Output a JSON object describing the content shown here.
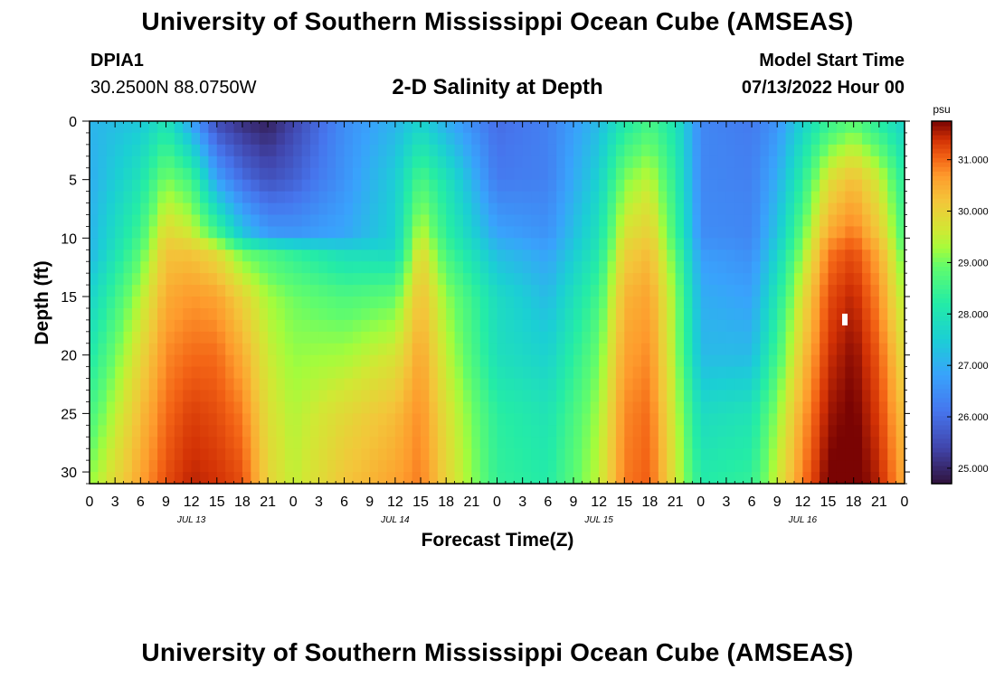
{
  "header": {
    "title": "University of Southern Mississippi Ocean Cube (AMSEAS)",
    "station_id": "DPIA1",
    "station_coords": "30.2500N  88.0750W",
    "chart_heading": "2-D Salinity at Depth",
    "start_label": "Model Start Time",
    "start_value": "07/13/2022 Hour 00"
  },
  "footer": {
    "title": "University of Southern Mississippi Ocean Cube (AMSEAS)"
  },
  "chart_data": {
    "type": "heatmap",
    "title": "2-D Salinity at Depth",
    "xlabel": "Forecast Time(Z)",
    "ylabel": "Depth (ft)",
    "x_range_hours": [
      0,
      96
    ],
    "y_range_ft": [
      0,
      31
    ],
    "x_ticks": [
      "0",
      "3",
      "6",
      "9",
      "12",
      "15",
      "18",
      "21",
      "0",
      "3",
      "6",
      "9",
      "12",
      "15",
      "18",
      "21",
      "0",
      "3",
      "6",
      "9",
      "12",
      "15",
      "18",
      "21",
      "0",
      "3",
      "6",
      "9",
      "12",
      "15",
      "18",
      "21",
      "0"
    ],
    "day_labels": [
      "JUL 13",
      "JUL 14",
      "JUL 15",
      "JUL 16"
    ],
    "y_ticks": [
      "0",
      "5",
      "10",
      "15",
      "20",
      "25",
      "30"
    ],
    "colorbar": {
      "unit": "psu",
      "range": [
        24.7,
        31.75
      ],
      "ticks": [
        "25.000",
        "26.000",
        "27.000",
        "28.000",
        "29.000",
        "30.000",
        "31.000"
      ]
    },
    "salinity_grid": {
      "rows": "depth_ft",
      "cols": "hours",
      "depths": [
        0,
        5,
        10,
        11,
        15,
        20,
        25,
        31
      ],
      "hours": [
        0,
        6,
        9,
        12,
        15,
        18,
        21,
        24,
        30,
        36,
        39,
        42,
        48,
        54,
        60,
        63,
        66,
        69,
        72,
        78,
        81,
        84,
        87,
        90,
        93,
        96
      ],
      "values": [
        [
          27.1,
          27.4,
          28.0,
          26.8,
          25.5,
          25.1,
          24.9,
          25.4,
          26.5,
          27.1,
          27.6,
          27.0,
          26.0,
          26.3,
          27.2,
          28.1,
          28.6,
          28.0,
          26.4,
          26.2,
          26.6,
          27.6,
          28.4,
          28.8,
          28.2,
          27.6
        ],
        [
          27.0,
          28.0,
          29.1,
          28.6,
          26.8,
          26.0,
          25.6,
          25.8,
          26.6,
          27.5,
          28.7,
          28.0,
          26.2,
          26.3,
          27.6,
          29.1,
          29.5,
          28.3,
          26.4,
          26.3,
          27.0,
          28.3,
          29.8,
          30.3,
          29.6,
          28.2
        ],
        [
          27.1,
          28.6,
          30.0,
          29.7,
          28.8,
          27.5,
          26.8,
          26.7,
          26.9,
          27.6,
          29.6,
          28.4,
          26.9,
          26.6,
          28.0,
          29.8,
          30.1,
          28.6,
          26.5,
          26.4,
          27.4,
          29.0,
          30.6,
          31.0,
          30.2,
          28.6
        ],
        [
          27.1,
          28.8,
          30.2,
          30.2,
          29.8,
          28.9,
          28.6,
          28.3,
          27.8,
          27.7,
          29.9,
          28.6,
          27.2,
          26.8,
          28.1,
          30.0,
          30.3,
          28.8,
          26.7,
          26.5,
          27.6,
          29.2,
          30.9,
          31.2,
          30.5,
          28.8
        ],
        [
          27.6,
          29.4,
          30.5,
          30.7,
          30.6,
          30.0,
          29.3,
          29.0,
          28.7,
          28.9,
          30.3,
          29.2,
          27.8,
          27.2,
          28.6,
          30.4,
          30.6,
          29.2,
          27.0,
          26.8,
          28.1,
          29.8,
          31.2,
          31.5,
          30.8,
          29.3
        ],
        [
          28.1,
          29.9,
          30.8,
          31.0,
          31.0,
          30.5,
          29.6,
          29.2,
          29.3,
          29.7,
          30.6,
          29.5,
          27.9,
          27.6,
          29.0,
          30.6,
          30.8,
          29.3,
          27.2,
          27.2,
          28.6,
          30.2,
          31.4,
          31.7,
          31.1,
          29.8
        ],
        [
          28.6,
          30.3,
          31.0,
          31.3,
          31.2,
          30.9,
          29.8,
          29.4,
          29.9,
          30.3,
          30.8,
          29.8,
          28.3,
          28.0,
          29.3,
          30.8,
          31.0,
          29.5,
          27.8,
          28.0,
          29.2,
          30.6,
          31.6,
          31.8,
          31.3,
          30.2
        ],
        [
          29.2,
          30.6,
          31.2,
          31.5,
          31.4,
          31.2,
          30.0,
          29.5,
          30.2,
          30.6,
          30.9,
          30.0,
          28.4,
          28.2,
          29.5,
          30.9,
          31.1,
          29.7,
          28.2,
          28.4,
          29.6,
          30.9,
          31.8,
          31.9,
          31.5,
          30.5
        ]
      ]
    }
  }
}
